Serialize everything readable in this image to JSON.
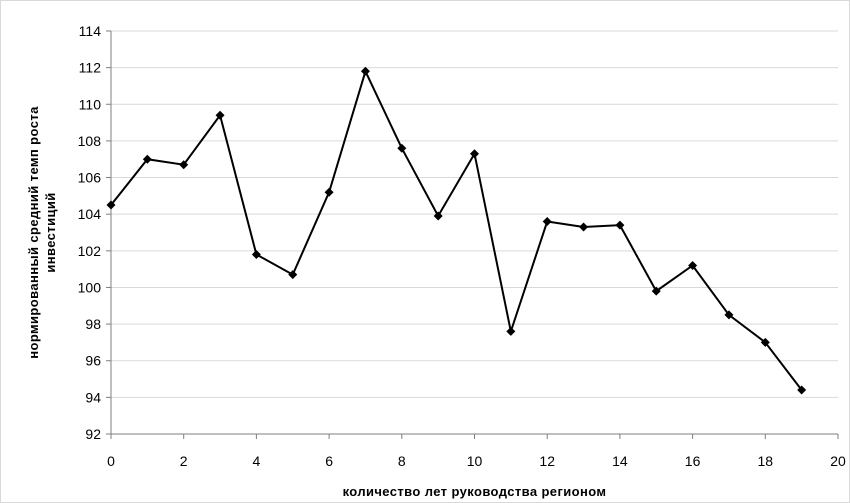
{
  "chart_data": {
    "type": "line",
    "title": "",
    "xlabel": "количество лет руководства регионом",
    "ylabel_lines": [
      "нормированный средний темп роста",
      "инвестиций"
    ],
    "xlim": [
      0,
      20
    ],
    "ylim": [
      92,
      114
    ],
    "x_ticks": [
      0,
      2,
      4,
      6,
      8,
      10,
      12,
      14,
      16,
      18,
      20
    ],
    "y_ticks": [
      92,
      94,
      96,
      98,
      100,
      102,
      104,
      106,
      108,
      110,
      112,
      114
    ],
    "grid": "horizontal",
    "legend": "none",
    "marker": "diamond",
    "line_color": "#000000",
    "grid_color": "#d9d9d9",
    "series": [
      {
        "x": [
          0,
          1,
          2,
          3,
          4,
          5,
          6,
          7,
          8,
          9,
          10,
          11,
          12,
          13,
          14,
          15,
          16,
          17,
          18,
          19
        ],
        "y": [
          104.5,
          107.0,
          106.7,
          109.4,
          101.8,
          100.7,
          105.2,
          111.8,
          107.6,
          103.9,
          107.3,
          97.6,
          103.6,
          103.3,
          103.4,
          99.8,
          101.2,
          98.5,
          97.0,
          94.4
        ]
      }
    ]
  }
}
